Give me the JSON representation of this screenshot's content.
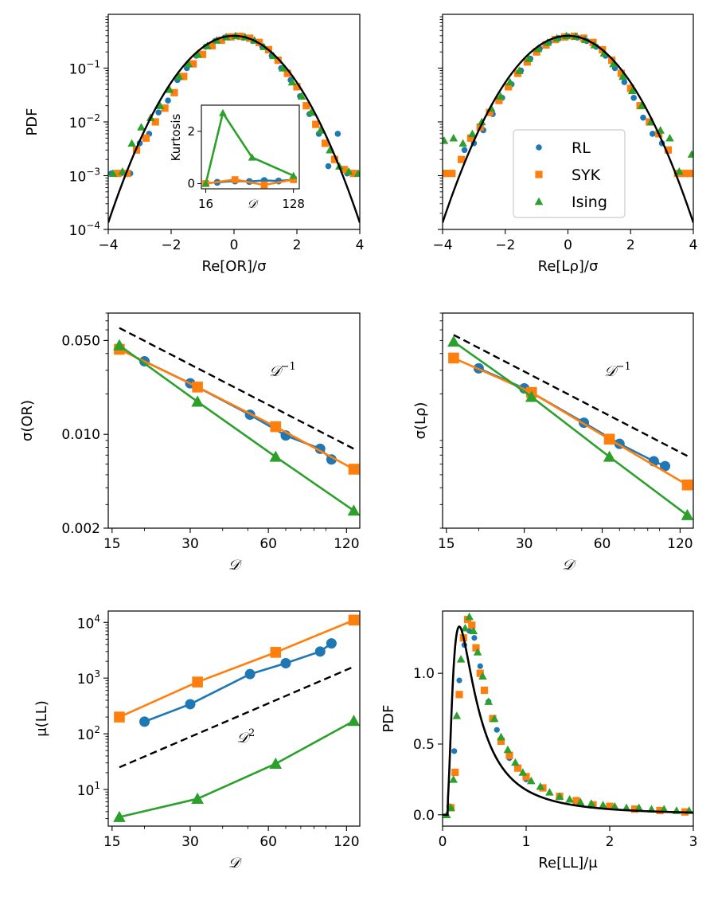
{
  "colors": {
    "RL": "#1f77b4",
    "SYK": "#ff7f0e",
    "Ising": "#2ca02c",
    "theory": "#000000"
  },
  "legend": {
    "entries": [
      "RL",
      "SYK",
      "Ising"
    ]
  },
  "chart_data": [
    {
      "id": "pdf_or",
      "type": "scatter",
      "xlabel": "Re[OR]/σ",
      "ylabel": "PDF",
      "xlim": [
        -4,
        4
      ],
      "ylim_log10": [
        -4,
        0
      ],
      "xscale": "linear",
      "yscale": "log",
      "x_ticks": [
        -4,
        -2,
        0,
        2,
        4
      ],
      "x_tick_labels": [
        "−4",
        "−2",
        "0",
        "2",
        "4"
      ],
      "y_ticks_log10": [
        -4,
        -3,
        -2,
        -1
      ],
      "y_tick_bases": [
        "10",
        "10",
        "10",
        "10"
      ],
      "y_tick_exps": [
        "−4",
        "−3",
        "−2",
        "−1"
      ],
      "theory": "gaussian",
      "series": [
        {
          "name": "RL",
          "x": [
            -3.9,
            -3.6,
            -3.3,
            -3.0,
            -2.7,
            -2.4,
            -2.1,
            -1.8,
            -1.5,
            -1.2,
            -0.9,
            -0.6,
            -0.3,
            0,
            0.3,
            0.6,
            0.9,
            1.2,
            1.5,
            1.8,
            2.1,
            2.4,
            2.7,
            3.0,
            3.3,
            3.6,
            3.9
          ],
          "y": [
            0.0011,
            0.0011,
            0.0011,
            0.004,
            0.006,
            0.015,
            0.025,
            0.06,
            0.1,
            0.17,
            0.25,
            0.32,
            0.37,
            0.39,
            0.37,
            0.32,
            0.25,
            0.17,
            0.1,
            0.06,
            0.03,
            0.014,
            0.006,
            0.0015,
            0.006,
            0.0011,
            0.0011
          ]
        },
        {
          "name": "SYK",
          "x": [
            -3.7,
            -3.4,
            -3.1,
            -2.8,
            -2.5,
            -2.2,
            -1.9,
            -1.6,
            -1.3,
            -1.0,
            -0.7,
            -0.4,
            -0.1,
            0.2,
            0.5,
            0.8,
            1.1,
            1.4,
            1.7,
            2.0,
            2.3,
            2.6,
            2.9,
            3.2,
            3.5,
            3.8
          ],
          "y": [
            0.0011,
            0.0011,
            0.003,
            0.005,
            0.01,
            0.018,
            0.035,
            0.07,
            0.12,
            0.18,
            0.26,
            0.33,
            0.38,
            0.39,
            0.36,
            0.3,
            0.22,
            0.14,
            0.08,
            0.045,
            0.02,
            0.009,
            0.004,
            0.002,
            0.0013,
            0.0011
          ]
        },
        {
          "name": "Ising",
          "x": [
            -3.85,
            -3.55,
            -3.25,
            -2.95,
            -2.65,
            -2.35,
            -2.05,
            -1.75,
            -1.45,
            -1.15,
            -0.85,
            -0.55,
            -0.25,
            0.05,
            0.35,
            0.65,
            0.95,
            1.25,
            1.55,
            1.85,
            2.15,
            2.45,
            2.75,
            3.05,
            3.35,
            3.65,
            3.95
          ],
          "y": [
            0.0011,
            0.0012,
            0.004,
            0.008,
            0.012,
            0.02,
            0.04,
            0.07,
            0.12,
            0.18,
            0.26,
            0.33,
            0.38,
            0.4,
            0.38,
            0.33,
            0.25,
            0.17,
            0.1,
            0.055,
            0.03,
            0.015,
            0.007,
            0.003,
            0.0015,
            0.0012,
            0.0011
          ]
        }
      ],
      "inset": {
        "xlabel": "𝒟",
        "ylabel": "Kurtosis",
        "x_tick_labels": [
          "16",
          "128"
        ],
        "x_ticks_log2": [
          4,
          7
        ],
        "y_ticks": [
          0,
          2
        ],
        "y_tick_labels": [
          "0",
          "2"
        ],
        "xlim_log2": [
          3.85,
          7.2
        ],
        "ylim": [
          -0.2,
          3.0
        ],
        "series": [
          {
            "name": "RL",
            "D": [
              21,
              32,
              45,
              64,
              90,
              128
            ],
            "k": [
              0.05,
              0.1,
              0.08,
              0.12,
              0.1,
              0.15
            ]
          },
          {
            "name": "SYK",
            "D": [
              16,
              32,
              64,
              128
            ],
            "k": [
              0.0,
              0.15,
              -0.05,
              0.15
            ]
          },
          {
            "name": "Ising",
            "D": [
              16,
              24,
              48,
              128
            ],
            "k": [
              0.0,
              2.7,
              1.0,
              0.3
            ]
          }
        ]
      }
    },
    {
      "id": "pdf_lrho",
      "type": "scatter",
      "xlabel": "Re[Lρ]/σ",
      "ylabel": "",
      "xlim": [
        -4,
        4
      ],
      "ylim_log10": [
        -4,
        0
      ],
      "xscale": "linear",
      "yscale": "log",
      "x_ticks": [
        -4,
        -2,
        0,
        2,
        4
      ],
      "x_tick_labels": [
        "−4",
        "−2",
        "0",
        "2",
        "4"
      ],
      "theory": "gaussian",
      "series": [
        {
          "name": "RL",
          "x": [
            -3.3,
            -3.0,
            -2.7,
            -2.4,
            -2.1,
            -1.8,
            -1.5,
            -1.2,
            -0.9,
            -0.6,
            -0.3,
            0,
            0.3,
            0.6,
            0.9,
            1.2,
            1.5,
            1.8,
            2.1,
            2.4,
            2.7,
            3.0
          ],
          "y": [
            0.003,
            0.004,
            0.007,
            0.014,
            0.028,
            0.05,
            0.09,
            0.15,
            0.23,
            0.3,
            0.36,
            0.39,
            0.37,
            0.32,
            0.25,
            0.17,
            0.1,
            0.055,
            0.028,
            0.012,
            0.006,
            0.004
          ]
        },
        {
          "name": "SYK",
          "x": [
            -3.9,
            -3.7,
            -3.4,
            -3.1,
            -2.8,
            -2.5,
            -2.2,
            -1.9,
            -1.6,
            -1.3,
            -1.0,
            -0.7,
            -0.4,
            -0.1,
            0.2,
            0.5,
            0.8,
            1.1,
            1.4,
            1.7,
            2.0,
            2.3,
            2.6,
            2.9,
            3.2,
            3.5,
            3.7,
            3.9
          ],
          "y": [
            0.0011,
            0.0011,
            0.002,
            0.005,
            0.008,
            0.015,
            0.025,
            0.045,
            0.08,
            0.13,
            0.2,
            0.27,
            0.34,
            0.38,
            0.39,
            0.36,
            0.3,
            0.22,
            0.14,
            0.08,
            0.042,
            0.02,
            0.01,
            0.006,
            0.003,
            0.0011,
            0.0011,
            0.0011
          ]
        },
        {
          "name": "Ising",
          "x": [
            -3.95,
            -3.65,
            -3.35,
            -3.05,
            -2.75,
            -2.45,
            -2.15,
            -1.85,
            -1.55,
            -1.25,
            -0.95,
            -0.65,
            -0.35,
            -0.05,
            0.25,
            0.55,
            0.85,
            1.15,
            1.45,
            1.75,
            2.05,
            2.35,
            2.65,
            2.95,
            3.25,
            3.55,
            3.95
          ],
          "y": [
            0.0045,
            0.005,
            0.004,
            0.006,
            0.01,
            0.018,
            0.03,
            0.055,
            0.09,
            0.15,
            0.23,
            0.3,
            0.36,
            0.4,
            0.39,
            0.34,
            0.27,
            0.19,
            0.12,
            0.07,
            0.038,
            0.02,
            0.01,
            0.007,
            0.005,
            0.0012,
            0.0025
          ]
        }
      ]
    },
    {
      "id": "sigma_or",
      "type": "line",
      "xlabel": "𝒟",
      "ylabel": "σ(OR)",
      "xscale": "log",
      "yscale": "log",
      "xlim": [
        14.5,
        135
      ],
      "ylim": [
        0.002,
        0.08
      ],
      "x_ticks": [
        15,
        30,
        60,
        120
      ],
      "x_tick_labels": [
        "15",
        "30",
        "60",
        "120"
      ],
      "y_ticks": [
        0.002,
        0.01,
        0.05
      ],
      "y_tick_labels": [
        "0.002",
        "0.010",
        "0.050"
      ],
      "reference": {
        "label": "𝒟",
        "exp": "−1",
        "D": [
          16,
          128
        ],
        "y": [
          0.062,
          0.0078
        ]
      },
      "series": [
        {
          "name": "RL",
          "D": [
            20,
            30,
            51,
            70,
            95,
            105
          ],
          "y": [
            0.035,
            0.024,
            0.014,
            0.0098,
            0.0078,
            0.0065
          ]
        },
        {
          "name": "SYK",
          "D": [
            16,
            32,
            64,
            128
          ],
          "y": [
            0.043,
            0.0225,
            0.0114,
            0.0055
          ]
        },
        {
          "name": "Ising",
          "D": [
            16,
            32,
            64,
            128
          ],
          "y": [
            0.046,
            0.0175,
            0.0068,
            0.0027
          ]
        }
      ]
    },
    {
      "id": "sigma_lrho",
      "type": "line",
      "xlabel": "𝒟",
      "ylabel": "σ(Lρ)",
      "xscale": "log",
      "yscale": "log",
      "xlim": [
        14.5,
        135
      ],
      "ylim": [
        0.002,
        0.08
      ],
      "x_ticks": [
        15,
        30,
        60,
        120
      ],
      "x_tick_labels": [
        "15",
        "30",
        "60",
        "120"
      ],
      "reference": {
        "label": "𝒟",
        "exp": "−1",
        "D": [
          16,
          128
        ],
        "y": [
          0.055,
          0.0069
        ]
      },
      "series": [
        {
          "name": "RL",
          "D": [
            20,
            30,
            51,
            70,
            95,
            105
          ],
          "y": [
            0.031,
            0.022,
            0.0122,
            0.0085,
            0.0063,
            0.0058
          ]
        },
        {
          "name": "SYK",
          "D": [
            16,
            32,
            64,
            128
          ],
          "y": [
            0.037,
            0.0205,
            0.0092,
            0.0042
          ]
        },
        {
          "name": "Ising",
          "D": [
            16,
            32,
            64,
            128
          ],
          "y": [
            0.049,
            0.019,
            0.0068,
            0.0025
          ]
        }
      ]
    },
    {
      "id": "mu_ll",
      "type": "line",
      "xlabel": "𝒟",
      "ylabel": "μ(LL)",
      "xscale": "log",
      "yscale": "log",
      "xlim": [
        14.5,
        135
      ],
      "ylim": [
        2.2,
        16000
      ],
      "x_ticks": [
        15,
        30,
        60,
        120
      ],
      "x_tick_labels": [
        "15",
        "30",
        "60",
        "120"
      ],
      "y_ticks_log10": [
        1,
        2,
        3,
        4
      ],
      "y_tick_bases": [
        "10",
        "10",
        "10",
        "10"
      ],
      "y_tick_exps": [
        "1",
        "2",
        "3",
        "4"
      ],
      "reference": {
        "label": "𝒟",
        "exp": "2",
        "D": [
          16,
          128
        ],
        "y": [
          25,
          1600
        ]
      },
      "series": [
        {
          "name": "RL",
          "D": [
            20,
            30,
            51,
            70,
            95,
            105
          ],
          "y": [
            165,
            340,
            1180,
            1850,
            3000,
            4200
          ]
        },
        {
          "name": "SYK",
          "D": [
            16,
            32,
            64,
            128
          ],
          "y": [
            200,
            850,
            2900,
            11000
          ]
        },
        {
          "name": "Ising",
          "D": [
            16,
            32,
            64,
            128
          ],
          "y": [
            3.2,
            6.8,
            29,
            170
          ]
        }
      ]
    },
    {
      "id": "pdf_ll",
      "type": "scatter",
      "xlabel": "Re[LL]/μ",
      "ylabel": "PDF",
      "xlim": [
        0,
        3
      ],
      "ylim": [
        -0.08,
        1.44
      ],
      "x_ticks": [
        0,
        1,
        2,
        3
      ],
      "x_tick_labels": [
        "0",
        "1",
        "2",
        "3"
      ],
      "y_ticks": [
        0,
        0.5,
        1.0
      ],
      "y_tick_labels": [
        "0.0",
        "0.5",
        "1.0"
      ],
      "theory": "heavy_tail",
      "series": [
        {
          "name": "RL",
          "x": [
            0.08,
            0.14,
            0.2,
            0.26,
            0.32,
            0.38,
            0.45,
            0.55,
            0.65,
            0.8,
            1.0
          ],
          "y": [
            0.06,
            0.45,
            0.95,
            1.2,
            1.3,
            1.25,
            1.05,
            0.8,
            0.6,
            0.4,
            0.25
          ]
        },
        {
          "name": "SYK",
          "x": [
            0.1,
            0.15,
            0.2,
            0.25,
            0.3,
            0.35,
            0.4,
            0.45,
            0.5,
            0.6,
            0.7,
            0.8,
            0.9,
            1.0,
            1.2,
            1.4,
            1.6,
            1.8,
            2.0,
            2.3,
            2.6,
            2.9
          ],
          "y": [
            0.05,
            0.3,
            0.85,
            1.25,
            1.38,
            1.34,
            1.18,
            1.0,
            0.88,
            0.68,
            0.52,
            0.42,
            0.33,
            0.27,
            0.19,
            0.13,
            0.1,
            0.07,
            0.06,
            0.04,
            0.03,
            0.02
          ]
        },
        {
          "name": "Ising",
          "x": [
            0.05,
            0.1,
            0.13,
            0.17,
            0.22,
            0.27,
            0.32,
            0.37,
            0.42,
            0.48,
            0.55,
            0.62,
            0.7,
            0.78,
            0.87,
            0.96,
            1.06,
            1.17,
            1.28,
            1.4,
            1.52,
            1.65,
            1.78,
            1.92,
            2.06,
            2.2,
            2.35,
            2.5,
            2.65,
            2.8,
            2.95
          ],
          "y": [
            0.0,
            0.05,
            0.25,
            0.7,
            1.1,
            1.32,
            1.4,
            1.3,
            1.15,
            0.98,
            0.8,
            0.68,
            0.55,
            0.46,
            0.37,
            0.3,
            0.24,
            0.2,
            0.16,
            0.13,
            0.11,
            0.09,
            0.08,
            0.07,
            0.06,
            0.05,
            0.05,
            0.04,
            0.04,
            0.03,
            0.03
          ]
        }
      ]
    }
  ]
}
